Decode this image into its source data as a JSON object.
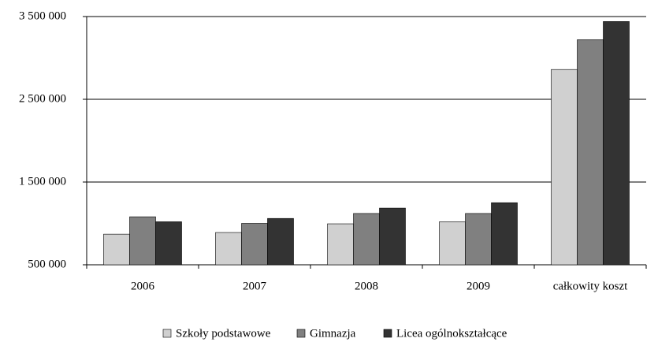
{
  "chart_data": {
    "type": "bar",
    "categories": [
      "2006",
      "2007",
      "2008",
      "2009",
      "całkowity koszt"
    ],
    "series": [
      {
        "name": "Szkoły podstawowe",
        "color": "#d0d0d0",
        "values": [
          870000,
          890000,
          995000,
          1020000,
          2860000
        ]
      },
      {
        "name": "Gimnazja",
        "color": "#808080",
        "values": [
          1080000,
          1000000,
          1120000,
          1120000,
          3220000
        ]
      },
      {
        "name": "Licea ogólnokształcące",
        "color": "#333333",
        "values": [
          1020000,
          1060000,
          1185000,
          1250000,
          3440000
        ]
      }
    ],
    "ylim": [
      500000,
      3500000
    ],
    "yticks": [
      {
        "value": 500000,
        "label": "500 000"
      },
      {
        "value": 1500000,
        "label": "1 500 000"
      },
      {
        "value": 2500000,
        "label": "2 500 000"
      },
      {
        "value": 3500000,
        "label": "3 500 000"
      }
    ],
    "grid": true
  }
}
